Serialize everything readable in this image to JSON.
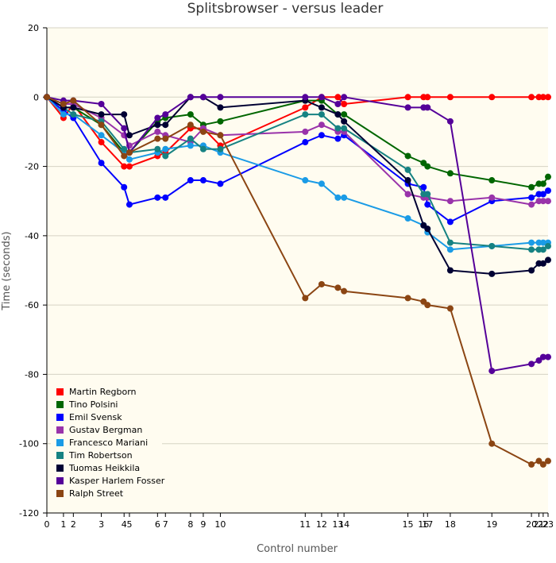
{
  "chart_data": {
    "type": "line",
    "title": "Splitsbrowser - versus leader",
    "xlabel": "Control number",
    "ylabel": "Time (seconds)",
    "ylim": [
      -120,
      20
    ],
    "y_ticks": [
      20,
      0,
      -20,
      -40,
      -60,
      -80,
      -100,
      -120
    ],
    "x_ticks": [
      "0",
      "1",
      "2",
      "3",
      "4",
      "5",
      "6",
      "7",
      "8",
      "9",
      "10",
      "11",
      "12",
      "13",
      "14",
      "15",
      "16",
      "17",
      "18",
      "19",
      "20",
      "21",
      "22",
      "23"
    ],
    "x_tick_values": [
      0,
      14.3,
      22.8,
      46.9,
      66.5,
      71.1,
      95.3,
      102.1,
      123.7,
      134.7,
      149.4,
      222.5,
      236.6,
      250.6,
      255.9,
      310.9,
      324.4,
      327.8,
      347.4,
      383.2,
      417.3,
      423.7,
      427.4,
      431.6
    ],
    "xlim": [
      0,
      431.6
    ],
    "grid": true,
    "legend_position": "bottom-left",
    "background": "#fffcf0",
    "series": [
      {
        "name": "Martin Regborn",
        "color": "#ff0000",
        "values": [
          0,
          -6,
          -2,
          -13,
          -20,
          -20,
          -17,
          -16,
          -9,
          -9,
          -14,
          -3,
          0,
          0,
          -2,
          0,
          0,
          0,
          0,
          0,
          0,
          0,
          0,
          0
        ]
      },
      {
        "name": "Tino Polsini",
        "color": "#006600",
        "values": [
          0,
          -3,
          -3,
          -8,
          -16,
          -16,
          -7,
          -6,
          -5,
          -8,
          -7,
          -1,
          -1,
          -5,
          -5,
          -17,
          -19,
          -20,
          -22,
          -24,
          -26,
          -25,
          -25,
          -23
        ]
      },
      {
        "name": "Emil Svensk",
        "color": "#0000ff",
        "values": [
          0,
          -4,
          -6,
          -19,
          -26,
          -31,
          -29,
          -29,
          -24,
          -24,
          -25,
          -13,
          -11,
          -12,
          -11,
          -25,
          -26,
          -31,
          -36,
          -30,
          -29,
          -28,
          -28,
          -27
        ]
      },
      {
        "name": "Gustav Bergman",
        "color": "#9933aa",
        "values": [
          0,
          -2,
          -2,
          -6,
          -11,
          -14,
          -10,
          -11,
          -13,
          -9,
          -11,
          -10,
          -8,
          -10,
          -10,
          -28,
          -29,
          -29,
          -30,
          -29,
          -31,
          -30,
          -30,
          -30
        ]
      },
      {
        "name": "Francesco Mariani",
        "color": "#1a9be6",
        "values": [
          0,
          -5,
          -5,
          -11,
          -16,
          -18,
          -16,
          -15,
          -14,
          -14,
          -16,
          -24,
          -25,
          -29,
          -29,
          -35,
          -37,
          -39,
          -44,
          -43,
          -42,
          -42,
          -42,
          -42
        ]
      },
      {
        "name": "Tim Robertson",
        "color": "#168282",
        "values": [
          0,
          -3,
          -5,
          -7,
          -15,
          -16,
          -15,
          -17,
          -12,
          -15,
          -15,
          -5,
          -5,
          -9,
          -9,
          -21,
          -28,
          -28,
          -42,
          -43,
          -44,
          -44,
          -44,
          -43
        ]
      },
      {
        "name": "Tuomas Heikkila",
        "color": "#000033",
        "values": [
          0,
          -3,
          -3,
          -5,
          -5,
          -11,
          -8,
          -8,
          0,
          0,
          -3,
          -1,
          -3,
          -5,
          -7,
          -24,
          -37,
          -38,
          -50,
          -51,
          -50,
          -48,
          -48,
          -47
        ]
      },
      {
        "name": "Kasper Harlem Fosser",
        "color": "#550099",
        "values": [
          0,
          -1,
          -1,
          -2,
          -9,
          -16,
          -6,
          -5,
          0,
          0,
          0,
          0,
          0,
          -2,
          0,
          -3,
          -3,
          -3,
          -7,
          -79,
          -77,
          -76,
          -75,
          -75
        ]
      },
      {
        "name": "Ralph Street",
        "color": "#8b4513",
        "values": [
          0,
          -2,
          -1,
          -8,
          -17,
          -16,
          -12,
          -12,
          -8,
          -10,
          -11,
          -58,
          -54,
          -55,
          -56,
          -58,
          -59,
          -60,
          -61,
          -100,
          -106,
          -105,
          -106,
          -105
        ]
      }
    ]
  }
}
